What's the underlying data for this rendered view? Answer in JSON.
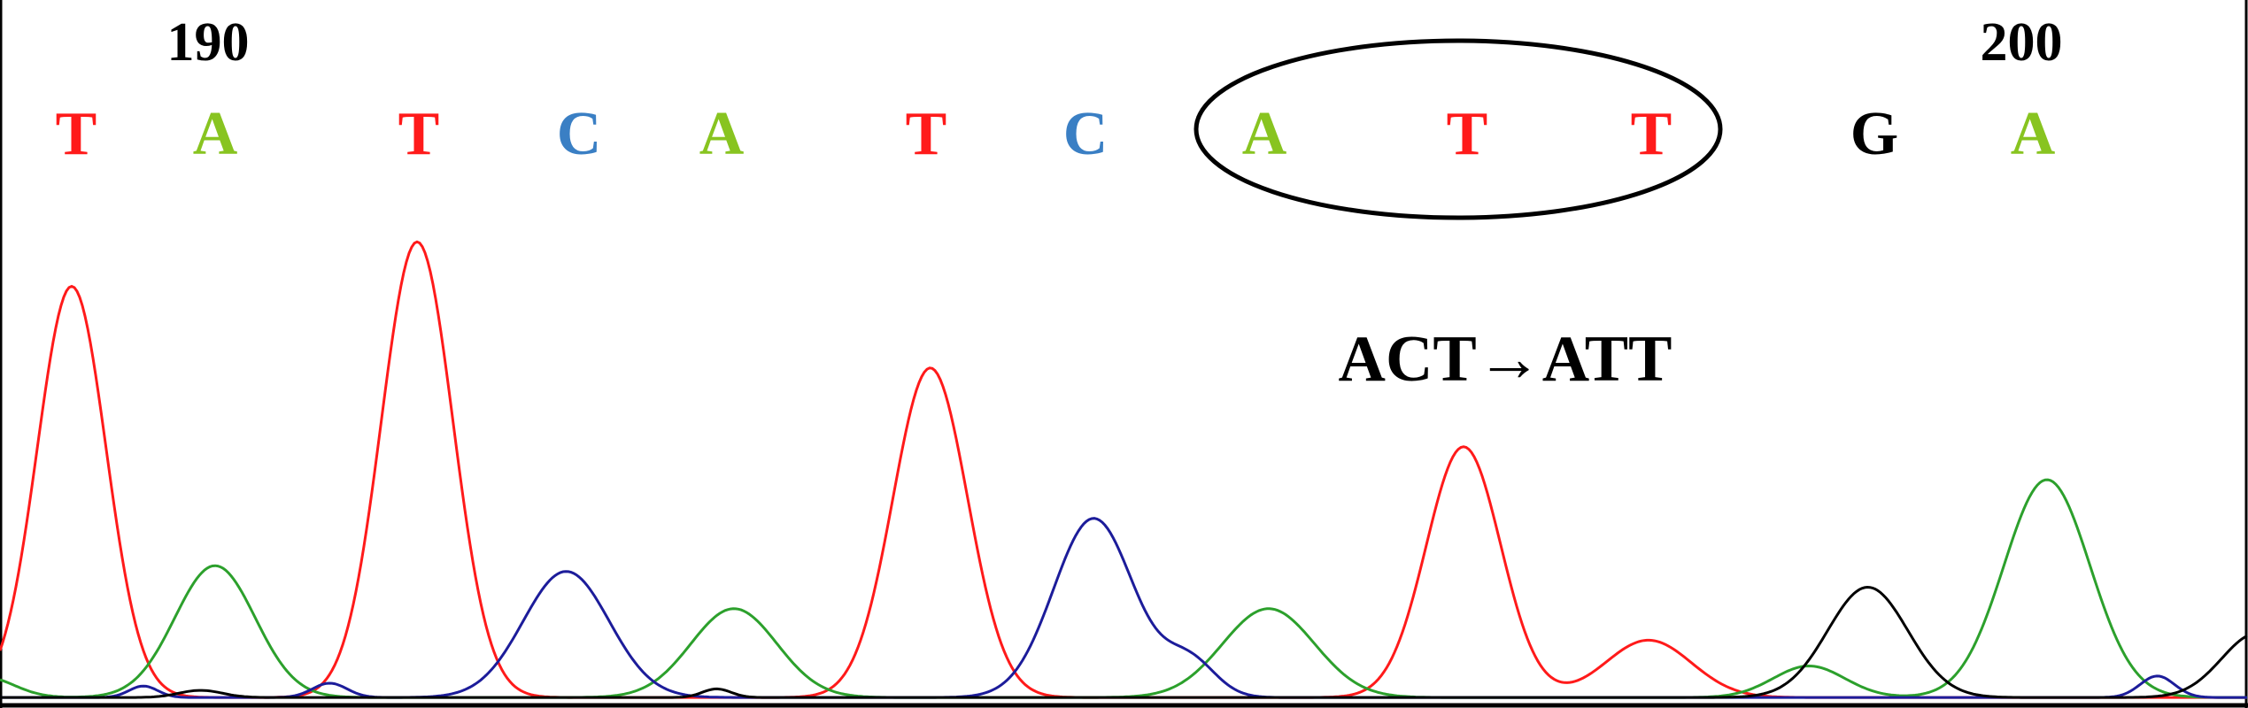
{
  "position_labels": [
    "190",
    "200"
  ],
  "bases": [
    "T",
    "A",
    "T",
    "C",
    "A",
    "T",
    "C",
    "A",
    "T",
    "T",
    "G",
    "A"
  ],
  "annotation": "ACT→ATT"
}
